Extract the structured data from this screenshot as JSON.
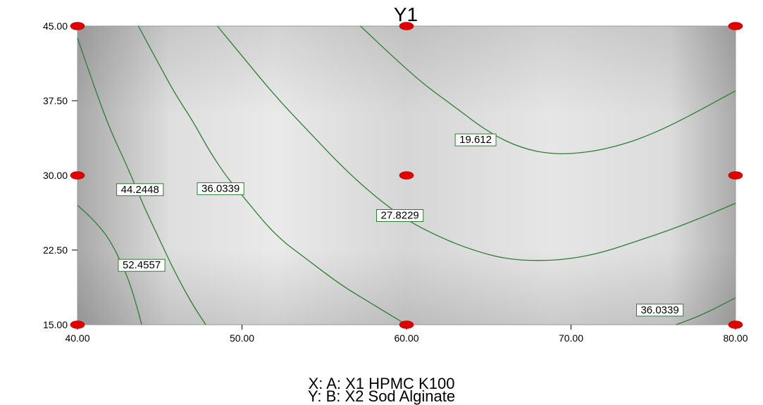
{
  "chart_data": {
    "type": "contour",
    "title": "Y1",
    "xlabel": "X: A: X1 HPMC K100",
    "ylabel": "Y: B: X2 Sod Alginate",
    "xlim": [
      40,
      80
    ],
    "ylim": [
      15,
      45
    ],
    "x_ticks": [
      "40.00",
      "50.00",
      "60.00",
      "70.00",
      "80.00"
    ],
    "y_ticks": [
      "15.00",
      "22.50",
      "30.00",
      "37.50",
      "45.00"
    ],
    "grid": false,
    "contour_color": "#2e7d32",
    "point_color": "#e00000",
    "design_points": [
      {
        "x": 40,
        "y": 45
      },
      {
        "x": 60,
        "y": 45
      },
      {
        "x": 80,
        "y": 45
      },
      {
        "x": 40,
        "y": 30
      },
      {
        "x": 60,
        "y": 30
      },
      {
        "x": 80,
        "y": 30
      },
      {
        "x": 40,
        "y": 15
      },
      {
        "x": 60,
        "y": 15
      },
      {
        "x": 80,
        "y": 15
      }
    ],
    "contours": [
      {
        "level": "52.4557",
        "label_at": {
          "x": 43.9,
          "y": 21.0
        },
        "points": [
          [
            40,
            27.0
          ],
          [
            41,
            25.5
          ],
          [
            42,
            23.5
          ],
          [
            43,
            20.0
          ],
          [
            43.5,
            17.5
          ],
          [
            43.9,
            15.0
          ]
        ]
      },
      {
        "level": "44.2448",
        "label_at": {
          "x": 43.8,
          "y": 28.6
        },
        "points": [
          [
            40,
            43.8
          ],
          [
            41,
            39.0
          ],
          [
            42,
            34.5
          ],
          [
            43,
            31.0
          ],
          [
            44,
            27.0
          ],
          [
            45,
            23.5
          ],
          [
            46,
            20.0
          ],
          [
            47,
            17.0
          ],
          [
            47.8,
            15.0
          ]
        ]
      },
      {
        "level": "36.0339",
        "label_at": {
          "x": 48.7,
          "y": 28.7
        },
        "points": [
          [
            43.7,
            45.0
          ],
          [
            45,
            41.0
          ],
          [
            46,
            38.0
          ],
          [
            47,
            35.5
          ],
          [
            48,
            32.5
          ],
          [
            49,
            30.0
          ],
          [
            50,
            28.0
          ],
          [
            52,
            24.0
          ],
          [
            54,
            21.5
          ],
          [
            56,
            19.0
          ],
          [
            58,
            17.0
          ],
          [
            60,
            15.0
          ]
        ]
      },
      {
        "level": "27.8229",
        "label_at": {
          "x": 59.6,
          "y": 26.0
        },
        "points": [
          [
            48.5,
            45.0
          ],
          [
            50,
            42.0
          ],
          [
            52,
            38.0
          ],
          [
            54,
            34.5
          ],
          [
            56,
            31.0
          ],
          [
            58,
            28.0
          ],
          [
            60,
            25.5
          ],
          [
            62,
            23.8
          ],
          [
            64,
            22.5
          ],
          [
            66,
            21.6
          ],
          [
            68,
            21.4
          ],
          [
            70,
            21.6
          ],
          [
            72,
            22.3
          ],
          [
            74,
            23.4
          ],
          [
            76,
            24.5
          ],
          [
            78,
            25.8
          ],
          [
            80,
            27.2
          ]
        ]
      },
      {
        "level": "19.612",
        "label_at": {
          "x": 64.2,
          "y": 33.6
        },
        "points": [
          [
            57.2,
            45.0
          ],
          [
            59,
            42.2
          ],
          [
            61,
            39.2
          ],
          [
            63,
            36.8
          ],
          [
            65,
            34.3
          ],
          [
            67,
            32.7
          ],
          [
            69,
            32.1
          ],
          [
            71,
            32.3
          ],
          [
            73,
            33.0
          ],
          [
            75,
            34.2
          ],
          [
            77,
            35.8
          ],
          [
            80,
            38.5
          ]
        ]
      },
      {
        "level": "36.0339",
        "label_at": {
          "x": 75.4,
          "y": 16.5
        },
        "points": [
          [
            76.4,
            15.0
          ],
          [
            78,
            16.0
          ],
          [
            80,
            17.7
          ]
        ]
      }
    ]
  }
}
